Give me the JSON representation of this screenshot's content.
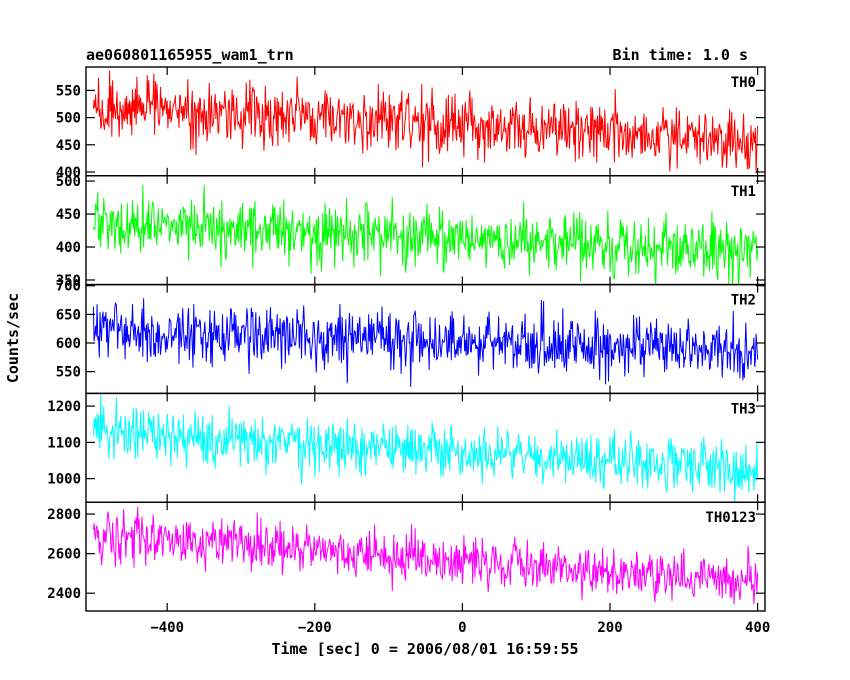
{
  "header": {
    "left": "ae060801165955_wam1_trn",
    "right": "Bin time: 1.0 s"
  },
  "y_axis_title": "Counts/sec",
  "x_axis_title": "Time [sec] 0 = 2006/08/01 16:59:55",
  "chart_data": {
    "type": "line",
    "xlabel": "Time [sec] 0 = 2006/08/01 16:59:55",
    "ylabel": "Counts/sec",
    "xlim": [
      -510,
      410
    ],
    "x_ticks": [
      -400,
      -200,
      0,
      200,
      400
    ],
    "x_tick_labels": [
      "−400",
      "−200",
      "0",
      "200",
      "400"
    ],
    "x_range": [
      -500,
      400
    ],
    "bin_time_s": 1.0,
    "panels": [
      {
        "name": "TH0",
        "color": "#ff0000",
        "ylim": [
          393,
          593
        ],
        "y_ticks": [
          400,
          450,
          500,
          550
        ],
        "y_tick_labels": [
          "400",
          "450",
          "500",
          "550"
        ],
        "trend": [
          {
            "t": -500,
            "v": 515
          },
          {
            "t": -100,
            "v": 495
          },
          {
            "t": 400,
            "v": 455
          }
        ],
        "noise_sd": 28
      },
      {
        "name": "TH1",
        "color": "#00ff00",
        "ylim": [
          343,
          508
        ],
        "y_ticks": [
          350,
          400,
          450,
          500
        ],
        "y_tick_labels": [
          "350",
          "400",
          "450",
          "500"
        ],
        "trend": [
          {
            "t": -500,
            "v": 435
          },
          {
            "t": -100,
            "v": 418
          },
          {
            "t": 400,
            "v": 392
          }
        ],
        "noise_sd": 22
      },
      {
        "name": "TH2",
        "color": "#0000ff",
        "ylim": [
          512,
          702
        ],
        "y_ticks": [
          550,
          600,
          650,
          700
        ],
        "y_tick_labels": [
          "550",
          "600",
          "650",
          "700"
        ],
        "trend": [
          {
            "t": -500,
            "v": 622
          },
          {
            "t": -100,
            "v": 605
          },
          {
            "t": 400,
            "v": 585
          }
        ],
        "noise_sd": 26
      },
      {
        "name": "TH3",
        "color": "#00ffff",
        "ylim": [
          935,
          1235
        ],
        "y_ticks": [
          1000,
          1100,
          1200
        ],
        "y_tick_labels": [
          "1000",
          "1100",
          "1200"
        ],
        "trend": [
          {
            "t": -500,
            "v": 1130
          },
          {
            "t": -100,
            "v": 1080
          },
          {
            "t": 400,
            "v": 1030
          }
        ],
        "noise_sd": 38
      },
      {
        "name": "TH0123",
        "color": "#ff00ff",
        "ylim": [
          2310,
          2860
        ],
        "y_ticks": [
          2400,
          2600,
          2800
        ],
        "y_tick_labels": [
          "2400",
          "2600",
          "2800"
        ],
        "trend": [
          {
            "t": -500,
            "v": 2700
          },
          {
            "t": -100,
            "v": 2590
          },
          {
            "t": 400,
            "v": 2460
          }
        ],
        "noise_sd": 60
      }
    ]
  }
}
